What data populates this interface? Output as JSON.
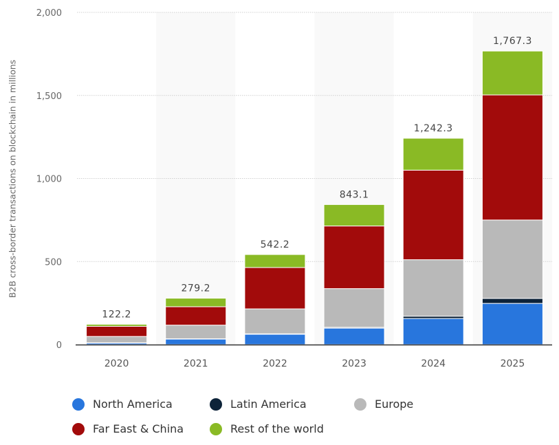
{
  "chart_data": {
    "type": "bar",
    "stacked": true,
    "title": "",
    "xlabel": "",
    "ylabel": "B2B cross-border transactions on blockchain in millions",
    "ylim": [
      0,
      2000
    ],
    "yticks": [
      0,
      500,
      1000,
      1500,
      2000
    ],
    "ytick_labels": [
      "0",
      "500",
      "1,000",
      "1,500",
      "2,000"
    ],
    "grid": true,
    "legend_position": "bottom",
    "categories": [
      "2020",
      "2021",
      "2022",
      "2023",
      "2024",
      "2025"
    ],
    "totals": [
      122.2,
      279.2,
      542.2,
      843.1,
      1242.3,
      1767.3
    ],
    "total_labels": [
      "122.2",
      "279.2",
      "542.2",
      "843.1",
      "1,242.3",
      "1,767.3"
    ],
    "series": [
      {
        "name": "North America",
        "color": "#2876dd",
        "values": [
          10,
          33,
          62,
          99,
          157,
          248
        ]
      },
      {
        "name": "Latin America",
        "color": "#0d2339",
        "values": [
          1,
          2,
          3,
          5,
          14,
          30
        ]
      },
      {
        "name": "Europe",
        "color": "#b9b9b9",
        "values": [
          38,
          82,
          150,
          233,
          340,
          472
        ]
      },
      {
        "name": "Far East & China",
        "color": "#a20b0b",
        "values": [
          61,
          111,
          249,
          377,
          539,
          753
        ]
      },
      {
        "name": "Rest of the world",
        "color": "#8aba25",
        "values": [
          12.2,
          51.2,
          78.2,
          129.1,
          192.3,
          264.3
        ]
      }
    ]
  }
}
